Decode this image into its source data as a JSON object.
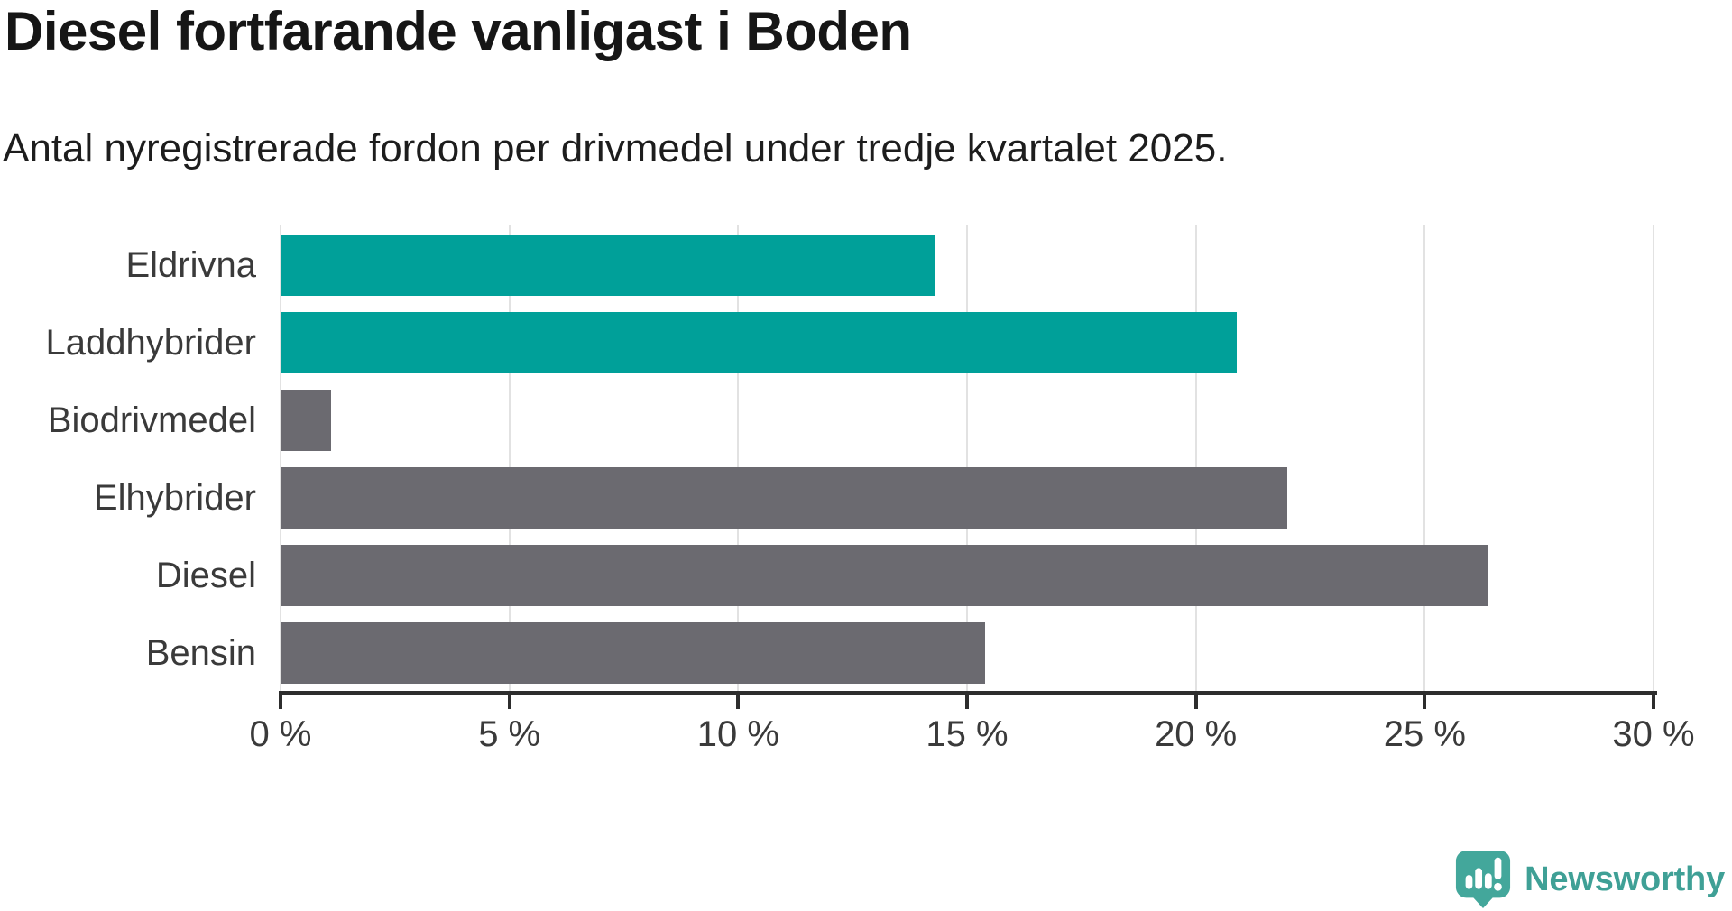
{
  "page": {
    "background": "#ffffff"
  },
  "chart_data": {
    "type": "bar",
    "orientation": "horizontal",
    "title": "Diesel fortfarande vanligast i Boden",
    "subtitle": "Antal nyregistrerade fordon per drivmedel under tredje kvartalet 2025.",
    "categories": [
      "Eldrivna",
      "Laddhybrider",
      "Biodrivmedel",
      "Elhybrider",
      "Diesel",
      "Bensin"
    ],
    "values": [
      14.3,
      20.9,
      1.1,
      22.0,
      26.4,
      15.4
    ],
    "unit": "%",
    "bar_colors": [
      "#00A099",
      "#00A099",
      "#6B6A70",
      "#6B6A70",
      "#6B6A70",
      "#6B6A70"
    ],
    "xlim": [
      0,
      30
    ],
    "x_ticks": [
      {
        "value": 0,
        "label": "0 %"
      },
      {
        "value": 5,
        "label": "5 %"
      },
      {
        "value": 10,
        "label": "10 %"
      },
      {
        "value": 15,
        "label": "15 %"
      },
      {
        "value": 20,
        "label": "20 %"
      },
      {
        "value": 25,
        "label": "25 %"
      },
      {
        "value": 30,
        "label": "30 %"
      }
    ],
    "grid": "vertical-gridlines-only",
    "legend": "none",
    "style_colors": {
      "highlight": "#00A099",
      "default": "#6B6A70",
      "gridline": "#E2E2E2",
      "axis": "#2D2D2D",
      "label_text": "#3a3a3a"
    }
  },
  "footer": {
    "brand": "Newsworthy",
    "brand_color": "#3FA096"
  }
}
